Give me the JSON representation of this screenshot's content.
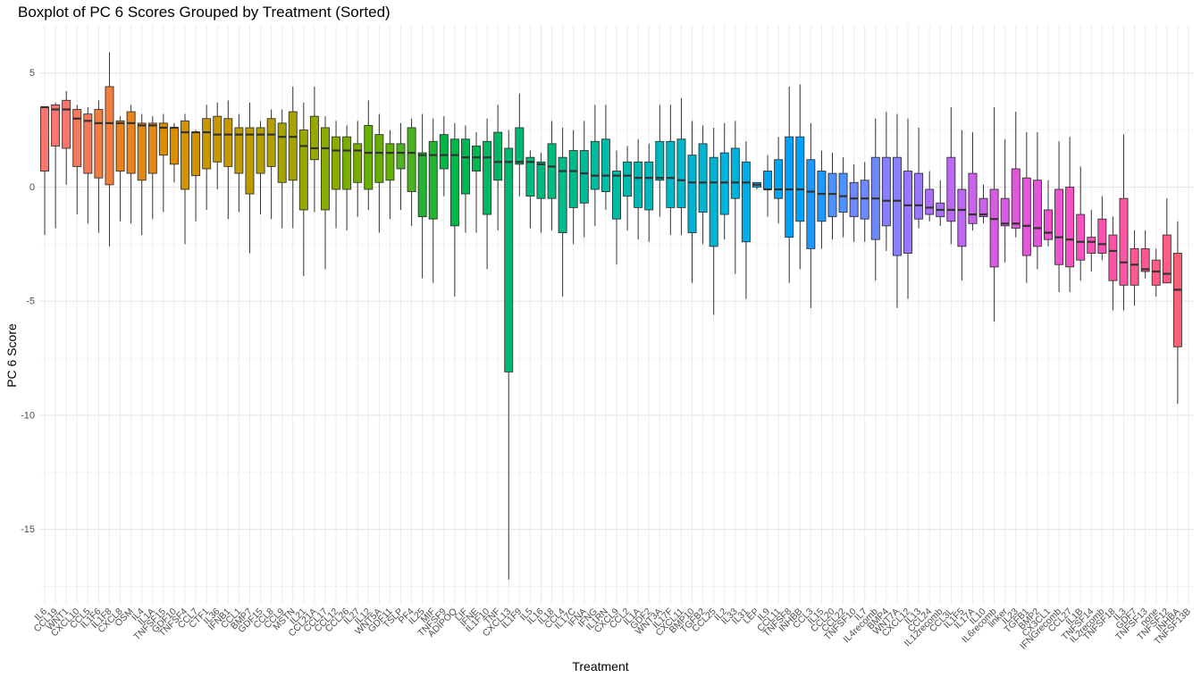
{
  "title": "Boxplot of PC 6 Scores Grouped by Treatment (Sorted)",
  "chart_data": {
    "type": "boxplot",
    "title": "Boxplot of PC 6 Scores Grouped by Treatment (Sorted)",
    "xlabel": "Treatment",
    "ylabel": "PC 6 Score",
    "ylim": [
      -18.3,
      7.1
    ],
    "yticks": [
      5,
      0,
      -5,
      -10,
      -15
    ],
    "ytick_labels": [
      "5",
      "0",
      "-5",
      "-10",
      "-15"
    ],
    "grid": true,
    "legend": "none",
    "categories": [
      "IL6",
      "CCL19",
      "WNT1",
      "CXCL10",
      "CCL5",
      "IL1F6",
      "IL1F8",
      "CXCL8",
      "OSM",
      "IL4",
      "IL1A",
      "TNFSF15",
      "GDF10",
      "TNFSF4",
      "CCL7",
      "CTF1",
      "IL36",
      "IFNB1",
      "CCL1",
      "BMP7",
      "GDF15",
      "CCL8",
      "CCL9",
      "MSTN",
      "IL21",
      "CCL21A",
      "CCL17",
      "CCL12",
      "CCL26",
      "IL27",
      "IL12",
      "WNT5A",
      "GDF11",
      "TSLP",
      "PF4",
      "IL25",
      "MIF",
      "TNFSF9",
      "ADIPOQ",
      "LIF",
      "IFNE",
      "IL1F10",
      "TNF",
      "CXCL13",
      "IL1F9",
      "IL5",
      "IL16",
      "IL18",
      "CCL4",
      "IL17C",
      "IFNA",
      "IFNG",
      "IL1RN",
      "CXCL9",
      "CCL2",
      "IL1A",
      "GDF2",
      "WNT3A",
      "IL17F",
      "CXCL11",
      "BMP10",
      "TGFB2",
      "CCL25",
      "IL2",
      "IL33",
      "IL31",
      "LEP",
      "IL9",
      "CCL11",
      "TNFSF8",
      "INHBB",
      "CCL3",
      "IL15",
      "CCL20",
      "CCL22",
      "TNFSF10",
      "IL7",
      "IL4recomb",
      "BMP4",
      "WNT7A",
      "CXCL12",
      "IL13",
      "CCL24",
      "IL12recomb",
      "CCL3L",
      "IL1F5",
      "IL17A",
      "IL10",
      "IL6recomb",
      "linker",
      "IL23",
      "TGFB1",
      "BMP2",
      "CX3CL1",
      "IFNGrecomb",
      "CCL27",
      "IL1B",
      "TNFSF14",
      "IL2recomb",
      "TNFSF18",
      "IL3",
      "GDF7",
      "TNFSF13",
      "none",
      "TNFSF12",
      "INHBA",
      "TNFSF13B"
    ],
    "series": [
      {
        "stats": [
          [
            -2.1,
            0.7,
            3.5,
            3.5,
            3.5
          ],
          [
            -1.8,
            1.8,
            3.4,
            3.6,
            3.7
          ],
          [
            0.1,
            1.7,
            3.4,
            3.8,
            4.2
          ],
          [
            -1.2,
            0.9,
            3.0,
            3.4,
            3.6
          ],
          [
            -1.6,
            0.6,
            2.9,
            3.2,
            3.5
          ],
          [
            -2.0,
            0.4,
            2.8,
            3.4,
            3.8
          ],
          [
            -2.6,
            0.1,
            2.8,
            4.4,
            5.9
          ],
          [
            -1.5,
            0.7,
            2.8,
            2.9,
            3.1
          ],
          [
            -1.6,
            0.6,
            2.8,
            3.3,
            3.6
          ],
          [
            -2.1,
            0.3,
            2.7,
            2.8,
            3.2
          ],
          [
            -1.4,
            0.6,
            2.7,
            2.8,
            3.1
          ],
          [
            -1.1,
            1.4,
            2.6,
            2.8,
            3.2
          ],
          [
            0.2,
            1.0,
            2.6,
            2.6,
            2.8
          ],
          [
            -2.5,
            -0.1,
            2.4,
            2.9,
            3.2
          ],
          [
            -1.5,
            0.5,
            2.4,
            2.4,
            2.5
          ],
          [
            -1.0,
            0.8,
            2.4,
            3.0,
            3.6
          ],
          [
            -0.1,
            1.1,
            2.3,
            3.1,
            3.7
          ],
          [
            -1.4,
            0.9,
            2.3,
            3.0,
            3.8
          ],
          [
            -1.1,
            0.6,
            2.3,
            2.6,
            3.2
          ],
          [
            -2.9,
            -0.3,
            2.3,
            2.6,
            3.7
          ],
          [
            -1.2,
            0.6,
            2.3,
            2.6,
            2.9
          ],
          [
            -1.4,
            0.9,
            2.3,
            3.0,
            3.4
          ],
          [
            -1.8,
            0.2,
            2.2,
            2.8,
            3.4
          ],
          [
            -1.8,
            0.3,
            2.2,
            3.3,
            4.4
          ],
          [
            -3.9,
            -1.0,
            1.8,
            2.5,
            3.7
          ],
          [
            -1.1,
            1.2,
            1.7,
            3.1,
            4.4
          ],
          [
            -3.6,
            -1.0,
            1.7,
            2.6,
            3.1
          ],
          [
            -1.8,
            -0.1,
            1.6,
            2.2,
            2.9
          ],
          [
            -1.9,
            -0.1,
            1.6,
            2.2,
            2.7
          ],
          [
            -1.3,
            0.2,
            1.6,
            1.9,
            2.9
          ],
          [
            -1.0,
            -0.1,
            1.5,
            2.7,
            3.8
          ],
          [
            -2.0,
            0.2,
            1.5,
            2.3,
            3.2
          ],
          [
            -1.4,
            0.3,
            1.5,
            1.9,
            2.5
          ],
          [
            -1.0,
            0.8,
            1.5,
            1.9,
            2.8
          ],
          [
            -1.7,
            -0.2,
            1.5,
            2.6,
            3.0
          ],
          [
            -4.0,
            -1.3,
            1.4,
            1.5,
            3.2
          ],
          [
            -4.2,
            -1.4,
            1.4,
            2.0,
            3.0
          ],
          [
            -0.4,
            0.8,
            1.4,
            2.3,
            3.1
          ],
          [
            -4.8,
            -1.7,
            1.4,
            2.1,
            2.8
          ],
          [
            -2.0,
            -0.3,
            1.3,
            2.1,
            2.7
          ],
          [
            -2.0,
            0.7,
            1.3,
            1.8,
            2.4
          ],
          [
            -3.6,
            -1.2,
            1.3,
            2.0,
            3.0
          ],
          [
            -1.9,
            0.3,
            1.1,
            2.4,
            3.6
          ],
          [
            -17.2,
            -8.1,
            1.1,
            1.7,
            2.5
          ],
          [
            -0.4,
            1.0,
            1.1,
            2.6,
            4.1
          ],
          [
            -1.8,
            -0.4,
            1.1,
            1.3,
            1.6
          ],
          [
            -2.0,
            -0.5,
            1.0,
            1.1,
            1.5
          ],
          [
            -1.9,
            -0.5,
            0.9,
            1.9,
            2.9
          ],
          [
            -4.8,
            -2.0,
            0.7,
            1.3,
            2.6
          ],
          [
            -2.5,
            -0.9,
            0.7,
            1.6,
            2.5
          ],
          [
            -2.2,
            -0.7,
            0.6,
            1.6,
            2.9
          ],
          [
            -1.7,
            -0.1,
            0.5,
            2.0,
            3.6
          ],
          [
            -1.0,
            -0.2,
            0.5,
            2.1,
            3.6
          ],
          [
            -3.4,
            -1.4,
            0.5,
            0.7,
            1.6
          ],
          [
            -1.9,
            -0.4,
            0.5,
            1.1,
            1.8
          ],
          [
            -2.3,
            -0.9,
            0.4,
            1.1,
            2.1
          ],
          [
            -2.4,
            -1.0,
            0.4,
            1.1,
            1.9
          ],
          [
            -1.3,
            0.3,
            0.4,
            2.0,
            3.6
          ],
          [
            -2.1,
            -0.9,
            0.4,
            2.0,
            3.6
          ],
          [
            -2.1,
            -0.9,
            0.3,
            2.1,
            3.9
          ],
          [
            -4.2,
            -2.0,
            0.2,
            1.4,
            2.9
          ],
          [
            -2.5,
            -1.1,
            0.2,
            1.9,
            2.7
          ],
          [
            -5.6,
            -2.6,
            0.2,
            1.3,
            2.6
          ],
          [
            -2.3,
            -1.2,
            0.2,
            1.5,
            2.8
          ],
          [
            -3.8,
            -0.5,
            0.2,
            1.7,
            2.9
          ],
          [
            -4.9,
            -2.4,
            0.2,
            1.1,
            2.0
          ],
          [
            -0.1,
            0.0,
            0.1,
            0.2,
            0.2
          ],
          [
            -1.3,
            -0.1,
            -0.1,
            0.7,
            1.4
          ],
          [
            -1.6,
            -0.5,
            -0.1,
            1.2,
            2.2
          ],
          [
            -4.2,
            -2.2,
            -0.1,
            2.2,
            4.4
          ],
          [
            -3.6,
            -1.5,
            -0.1,
            2.2,
            4.5
          ],
          [
            -5.3,
            -2.7,
            -0.2,
            1.2,
            2.8
          ],
          [
            -2.7,
            -1.5,
            -0.3,
            0.7,
            1.6
          ],
          [
            -2.3,
            -1.3,
            -0.3,
            0.6,
            1.5
          ],
          [
            -2.2,
            -1.1,
            -0.4,
            0.6,
            1.3
          ],
          [
            -2.4,
            -1.3,
            -0.5,
            0.2,
            1.0
          ],
          [
            -2.4,
            -1.4,
            -0.5,
            0.3,
            1.1
          ],
          [
            -4.1,
            -2.3,
            -0.5,
            1.3,
            3.0
          ],
          [
            -2.8,
            -1.7,
            -0.6,
            1.3,
            3.3
          ],
          [
            -5.3,
            -3.0,
            -0.6,
            1.3,
            3.2
          ],
          [
            -4.9,
            -2.9,
            -0.8,
            0.7,
            3.0
          ],
          [
            -1.8,
            -1.4,
            -0.8,
            0.6,
            2.6
          ],
          [
            -1.5,
            -1.2,
            -0.9,
            -0.1,
            0.7
          ],
          [
            -1.7,
            -1.3,
            -1.0,
            -0.7,
            0.3
          ],
          [
            -2.5,
            -1.5,
            -1.0,
            1.3,
            3.5
          ],
          [
            -4.1,
            -2.6,
            -1.0,
            -0.1,
            2.5
          ],
          [
            -1.9,
            -1.6,
            -1.2,
            0.6,
            2.4
          ],
          [
            -1.6,
            -1.3,
            -1.2,
            -0.5,
            0.1
          ],
          [
            -5.9,
            -3.5,
            -1.4,
            -0.1,
            3.5
          ],
          [
            -3.3,
            -1.7,
            -1.6,
            -0.5,
            2.1
          ],
          [
            -2.2,
            -1.8,
            -1.6,
            0.8,
            3.3
          ],
          [
            -4.2,
            -3.0,
            -1.7,
            0.4,
            2.4
          ],
          [
            -3.6,
            -2.6,
            -1.8,
            0.3,
            2.4
          ],
          [
            -2.6,
            -2.3,
            -2.0,
            -1.0,
            0.3
          ],
          [
            -4.6,
            -3.4,
            -2.2,
            -0.1,
            2.0
          ],
          [
            -4.6,
            -3.5,
            -2.3,
            0.0,
            2.2
          ],
          [
            -4.1,
            -3.2,
            -2.4,
            -1.2,
            0.9
          ],
          [
            -3.7,
            -2.9,
            -2.4,
            -2.2,
            -1.0
          ],
          [
            -3.2,
            -2.9,
            -2.5,
            -1.4,
            -0.4
          ],
          [
            -5.4,
            -4.1,
            -2.8,
            -2.1,
            -1.3
          ],
          [
            -5.4,
            -4.3,
            -3.3,
            -0.5,
            2.3
          ],
          [
            -5.2,
            -4.3,
            -3.4,
            -2.7,
            -1.9
          ],
          [
            -4.0,
            -3.7,
            -3.6,
            -2.7,
            -1.9
          ],
          [
            -4.8,
            -4.3,
            -3.7,
            -3.2,
            -2.7
          ],
          [
            -4.2,
            -4.2,
            -3.8,
            -2.1,
            -0.5
          ],
          [
            -9.5,
            -7.0,
            -4.5,
            -2.9,
            -1.5
          ]
        ]
      }
    ],
    "colors": [
      "#F8766D",
      "#F67A57",
      "#F17E3E",
      "#EB8318",
      "#E4881A",
      "#DB8E00",
      "#D29300",
      "#C99800",
      "#BE9C00",
      "#B3A000",
      "#A6A400",
      "#99A800",
      "#8AAB00",
      "#79AE00",
      "#64B100",
      "#4BB31D",
      "#22B432",
      "#00B644",
      "#00B754",
      "#00B863",
      "#00B971",
      "#00BA7F",
      "#00BA8C",
      "#00BB99",
      "#00BBA6",
      "#00BAB2",
      "#00B9BE",
      "#00B8C9",
      "#00B5D3",
      "#00B2DE",
      "#00ADE7",
      "#00A7F0",
      "#00A1F8",
      "#1D99FD",
      "#4E92FF",
      "#6E89FF",
      "#8780FF",
      "#9B77FF",
      "#AD6FFB",
      "#BD67F5",
      "#CB61ED",
      "#D85BE4",
      "#E356DA",
      "#EC53CE",
      "#F352C1",
      "#F853B3",
      "#FC55A4",
      "#FE5894",
      "#FE5C84",
      "#FC6074"
    ],
    "box_line_color": "#333333"
  }
}
